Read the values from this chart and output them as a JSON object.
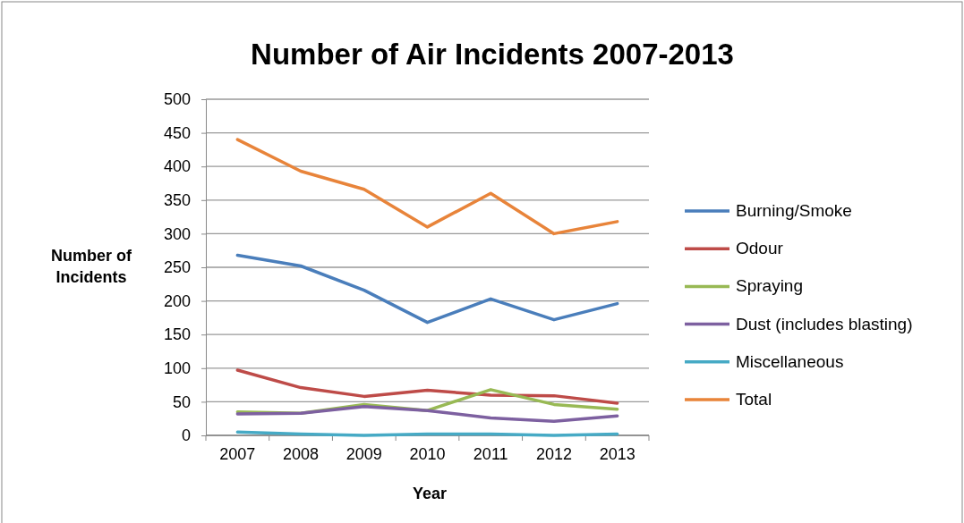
{
  "chart_data": {
    "type": "line",
    "title": "Number of Air Incidents 2007-2013",
    "xlabel": "Year",
    "ylabel": "Number of Incidents",
    "categories": [
      "2007",
      "2008",
      "2009",
      "2010",
      "2011",
      "2012",
      "2013"
    ],
    "series": [
      {
        "name": "Burning/Smoke",
        "color": "#4a7ebb",
        "values": [
          268,
          252,
          216,
          168,
          203,
          172,
          196
        ]
      },
      {
        "name": "Odour",
        "color": "#be4b48",
        "values": [
          97,
          71,
          58,
          67,
          60,
          59,
          48
        ]
      },
      {
        "name": "Spraying",
        "color": "#98b954",
        "values": [
          35,
          33,
          46,
          37,
          68,
          46,
          39
        ]
      },
      {
        "name": "Dust (includes blasting)",
        "color": "#7d60a0",
        "values": [
          32,
          33,
          43,
          37,
          26,
          21,
          29
        ]
      },
      {
        "name": "Miscellaneous",
        "color": "#46aac5",
        "values": [
          5,
          2,
          0,
          2,
          2,
          0,
          2
        ]
      },
      {
        "name": "Total",
        "color": "#e8843a",
        "values": [
          440,
          393,
          366,
          310,
          360,
          300,
          318
        ]
      }
    ],
    "ylim": [
      0,
      500
    ],
    "yticks": [
      0,
      50,
      100,
      150,
      200,
      250,
      300,
      350,
      400,
      450,
      500
    ],
    "grid": "y",
    "legend": "right",
    "marker": "none",
    "line_style": "solid"
  }
}
